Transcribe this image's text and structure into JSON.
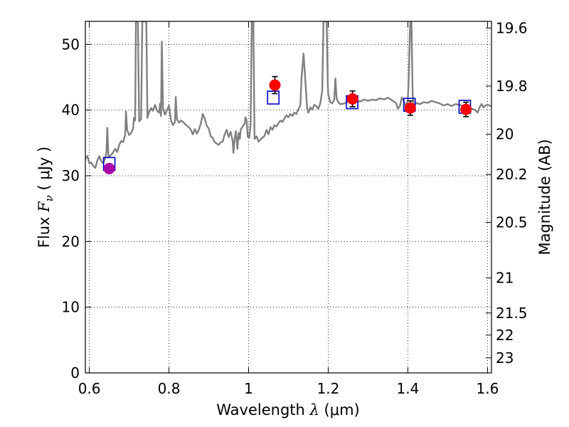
{
  "chart_data": {
    "type": "scatter",
    "xlabel": "Wavelength",
    "xlabel_symbol": "λ",
    "xlabel_unit": "(μm)",
    "ylabel": "Flux",
    "ylabel_symbol": "F",
    "ylabel_subscript": "ν",
    "ylabel_unit": "( μJy )",
    "y2label": "Magnitude (AB)",
    "xlim": [
      0.59,
      1.61
    ],
    "ylim": [
      0,
      53.5
    ],
    "grid": true,
    "grid_style": "dotted",
    "x_ticks": [
      0.6,
      0.8,
      1.0,
      1.2,
      1.4,
      1.6
    ],
    "x_tick_labels": [
      "0.6",
      "0.8",
      "1",
      "1.2",
      "1.4",
      "1.6"
    ],
    "y_ticks": [
      0,
      10,
      20,
      30,
      40,
      50
    ],
    "y_tick_labels": [
      "0",
      "10",
      "20",
      "30",
      "40",
      "50"
    ],
    "y2_ticks": [
      {
        "label": "19.6",
        "mag": 19.6
      },
      {
        "label": "19.8",
        "mag": 19.8
      },
      {
        "label": "20",
        "mag": 20.0
      },
      {
        "label": "20.2",
        "mag": 20.2
      },
      {
        "label": "20.5",
        "mag": 20.5
      },
      {
        "label": "21",
        "mag": 21.0
      },
      {
        "label": "21.5",
        "mag": 21.5
      },
      {
        "label": "22",
        "mag": 22.0
      },
      {
        "label": "23",
        "mag": 23.0
      }
    ],
    "spectrum": {
      "color": "#808080",
      "points": [
        [
          0.59,
          32.6
        ],
        [
          0.595,
          33.0
        ],
        [
          0.6,
          31.9
        ],
        [
          0.605,
          32.0
        ],
        [
          0.61,
          31.5
        ],
        [
          0.615,
          31.2
        ],
        [
          0.62,
          32.3
        ],
        [
          0.625,
          33.0
        ],
        [
          0.63,
          32.2
        ],
        [
          0.635,
          31.9
        ],
        [
          0.64,
          32.7
        ],
        [
          0.643,
          33.6
        ],
        [
          0.645,
          37.3
        ],
        [
          0.648,
          32.8
        ],
        [
          0.655,
          33.2
        ],
        [
          0.66,
          33.6
        ],
        [
          0.665,
          34.1
        ],
        [
          0.67,
          33.6
        ],
        [
          0.675,
          34.7
        ],
        [
          0.68,
          35.3
        ],
        [
          0.685,
          35.1
        ],
        [
          0.69,
          36.3
        ],
        [
          0.692,
          39.8
        ],
        [
          0.695,
          37.0
        ],
        [
          0.7,
          36.2
        ],
        [
          0.705,
          36.5
        ],
        [
          0.71,
          37.2
        ],
        [
          0.712,
          38.8
        ],
        [
          0.715,
          38.4
        ],
        [
          0.717,
          53.5
        ],
        [
          0.722,
          53.5
        ],
        [
          0.725,
          38.3
        ],
        [
          0.73,
          38.6
        ],
        [
          0.733,
          53.5
        ],
        [
          0.743,
          53.5
        ],
        [
          0.746,
          38.8
        ],
        [
          0.75,
          39.7
        ],
        [
          0.755,
          40.3
        ],
        [
          0.76,
          39.9
        ],
        [
          0.765,
          40.8
        ],
        [
          0.77,
          39.9
        ],
        [
          0.775,
          39.6
        ],
        [
          0.778,
          41.0
        ],
        [
          0.78,
          39.1
        ],
        [
          0.782,
          50.4
        ],
        [
          0.785,
          40.3
        ],
        [
          0.79,
          39.3
        ],
        [
          0.795,
          40.0
        ],
        [
          0.8,
          40.7
        ],
        [
          0.805,
          38.4
        ],
        [
          0.81,
          37.7
        ],
        [
          0.815,
          38.2
        ],
        [
          0.817,
          42.0
        ],
        [
          0.82,
          38.6
        ],
        [
          0.825,
          38.1
        ],
        [
          0.83,
          38.4
        ],
        [
          0.835,
          38.2
        ],
        [
          0.84,
          37.9
        ],
        [
          0.845,
          37.6
        ],
        [
          0.85,
          37.4
        ],
        [
          0.855,
          37.0
        ],
        [
          0.86,
          36.3
        ],
        [
          0.865,
          37.1
        ],
        [
          0.87,
          36.4
        ],
        [
          0.875,
          37.0
        ],
        [
          0.88,
          37.9
        ],
        [
          0.885,
          39.4
        ],
        [
          0.89,
          38.7
        ],
        [
          0.895,
          37.6
        ],
        [
          0.9,
          37.2
        ],
        [
          0.905,
          36.0
        ],
        [
          0.91,
          35.8
        ],
        [
          0.915,
          35.1
        ],
        [
          0.92,
          34.9
        ],
        [
          0.925,
          34.7
        ],
        [
          0.93,
          35.1
        ],
        [
          0.935,
          35.2
        ],
        [
          0.94,
          36.3
        ],
        [
          0.945,
          37.0
        ],
        [
          0.95,
          35.9
        ],
        [
          0.955,
          36.7
        ],
        [
          0.96,
          35.3
        ],
        [
          0.962,
          33.5
        ],
        [
          0.965,
          35.6
        ],
        [
          0.968,
          36.8
        ],
        [
          0.972,
          34.1
        ],
        [
          0.975,
          36.5
        ],
        [
          0.978,
          35.6
        ],
        [
          0.98,
          37.0
        ],
        [
          0.985,
          37.5
        ],
        [
          0.99,
          37.9
        ],
        [
          0.992,
          38.9
        ],
        [
          0.995,
          38.5
        ],
        [
          0.998,
          35.9
        ],
        [
          1.0,
          36.0
        ],
        [
          1.002,
          35.8
        ],
        [
          1.005,
          37.9
        ],
        [
          1.008,
          53.5
        ],
        [
          1.012,
          53.5
        ],
        [
          1.015,
          35.6
        ],
        [
          1.02,
          36.0
        ],
        [
          1.025,
          35.2
        ],
        [
          1.03,
          35.5
        ],
        [
          1.035,
          35.8
        ],
        [
          1.04,
          36.1
        ],
        [
          1.045,
          37.0
        ],
        [
          1.05,
          36.3
        ],
        [
          1.055,
          37.4
        ],
        [
          1.06,
          37.0
        ],
        [
          1.065,
          37.7
        ],
        [
          1.07,
          37.5
        ],
        [
          1.075,
          38.0
        ],
        [
          1.08,
          38.4
        ],
        [
          1.085,
          38.2
        ],
        [
          1.09,
          38.7
        ],
        [
          1.095,
          39.2
        ],
        [
          1.1,
          38.9
        ],
        [
          1.105,
          39.4
        ],
        [
          1.11,
          39.1
        ],
        [
          1.115,
          39.6
        ],
        [
          1.12,
          39.4
        ],
        [
          1.125,
          40.1
        ],
        [
          1.13,
          40.7
        ],
        [
          1.133,
          45.0
        ],
        [
          1.138,
          48.6
        ],
        [
          1.143,
          44.0
        ],
        [
          1.147,
          40.3
        ],
        [
          1.15,
          39.6
        ],
        [
          1.155,
          40.4
        ],
        [
          1.16,
          40.1
        ],
        [
          1.165,
          40.8
        ],
        [
          1.17,
          40.6
        ],
        [
          1.175,
          40.2
        ],
        [
          1.18,
          41.0
        ],
        [
          1.185,
          43.0
        ],
        [
          1.188,
          53.5
        ],
        [
          1.196,
          53.5
        ],
        [
          1.199,
          44.0
        ],
        [
          1.2,
          42.4
        ],
        [
          1.205,
          41.2
        ],
        [
          1.21,
          41.0
        ],
        [
          1.215,
          41.6
        ],
        [
          1.218,
          44.8
        ],
        [
          1.221,
          41.8
        ],
        [
          1.225,
          41.2
        ],
        [
          1.23,
          40.9
        ],
        [
          1.24,
          41.0
        ],
        [
          1.25,
          41.3
        ],
        [
          1.26,
          41.2
        ],
        [
          1.27,
          41.5
        ],
        [
          1.28,
          41.3
        ],
        [
          1.29,
          41.6
        ],
        [
          1.3,
          41.4
        ],
        [
          1.31,
          41.6
        ],
        [
          1.32,
          41.5
        ],
        [
          1.33,
          41.8
        ],
        [
          1.34,
          41.6
        ],
        [
          1.35,
          41.9
        ],
        [
          1.36,
          41.5
        ],
        [
          1.37,
          41.1
        ],
        [
          1.375,
          40.2
        ],
        [
          1.38,
          40.6
        ],
        [
          1.385,
          41.9
        ],
        [
          1.39,
          41.4
        ],
        [
          1.395,
          40.5
        ],
        [
          1.4,
          41.5
        ],
        [
          1.403,
          46.2
        ],
        [
          1.406,
          53.5
        ],
        [
          1.409,
          53.5
        ],
        [
          1.412,
          42.3
        ],
        [
          1.415,
          40.3
        ],
        [
          1.42,
          41.1
        ],
        [
          1.43,
          40.9
        ],
        [
          1.44,
          41.2
        ],
        [
          1.45,
          41.1
        ],
        [
          1.46,
          41.4
        ],
        [
          1.47,
          41.2
        ],
        [
          1.48,
          41.0
        ],
        [
          1.49,
          40.7
        ],
        [
          1.5,
          40.9
        ],
        [
          1.51,
          40.6
        ],
        [
          1.52,
          40.9
        ],
        [
          1.53,
          40.8
        ],
        [
          1.54,
          40.6
        ],
        [
          1.55,
          40.3
        ],
        [
          1.56,
          40.2
        ],
        [
          1.57,
          40.0
        ],
        [
          1.575,
          39.6
        ],
        [
          1.58,
          40.4
        ],
        [
          1.585,
          40.9
        ],
        [
          1.59,
          40.4
        ],
        [
          1.595,
          40.7
        ],
        [
          1.6,
          40.8
        ],
        [
          1.61,
          40.6
        ]
      ]
    },
    "model_photometry": {
      "marker": "open-square",
      "color": "#0000cc",
      "points": [
        {
          "x": 0.65,
          "y": 31.8
        },
        {
          "x": 1.062,
          "y": 41.9
        },
        {
          "x": 1.26,
          "y": 41.2
        },
        {
          "x": 1.404,
          "y": 40.8
        },
        {
          "x": 1.543,
          "y": 40.5
        }
      ]
    },
    "observed_photometry": {
      "marker": "filled-circle",
      "points": [
        {
          "x": 0.65,
          "y": 31.1,
          "yerr": 0.7,
          "color": "#aa00aa"
        },
        {
          "x": 1.066,
          "y": 43.8,
          "yerr": 1.3,
          "color": "#ff0000"
        },
        {
          "x": 1.261,
          "y": 41.7,
          "yerr": 1.2,
          "color": "#ff0000"
        },
        {
          "x": 1.406,
          "y": 40.3,
          "yerr": 1.1,
          "color": "#ff0000"
        },
        {
          "x": 1.546,
          "y": 40.1,
          "yerr": 1.1,
          "color": "#ff0000"
        }
      ]
    }
  }
}
